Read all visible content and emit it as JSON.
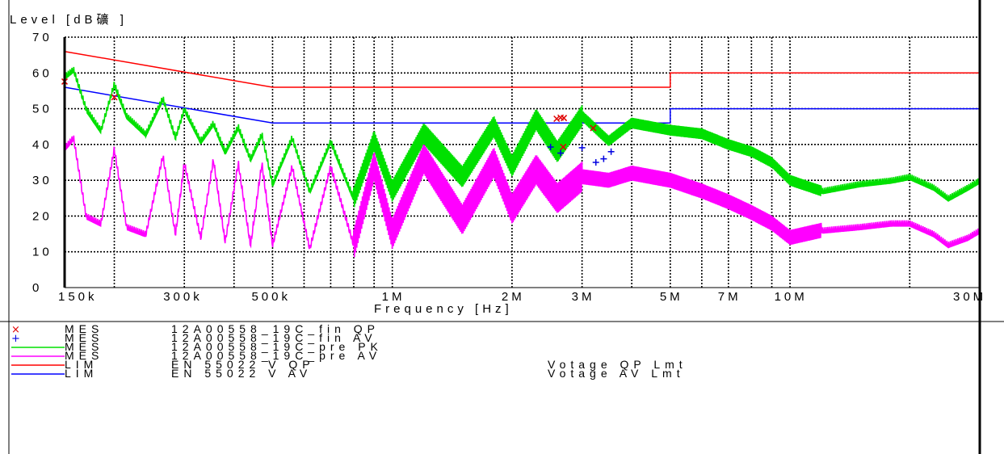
{
  "chart_data": {
    "type": "line",
    "ylabel": "Level [dB礦 ]",
    "xlabel": "Frequency [Hz]",
    "x_scale": "log",
    "xlim_hz": [
      150000,
      30000000
    ],
    "ylim": [
      0,
      70
    ],
    "y_ticks": [
      0,
      10,
      20,
      30,
      40,
      50,
      60,
      70
    ],
    "y_tick_labels": [
      "0",
      "10",
      "20",
      "30",
      "40",
      "50",
      "60",
      "70"
    ],
    "x_ticks_hz": [
      150000,
      300000,
      500000,
      1000000,
      2000000,
      3000000,
      5000000,
      7000000,
      10000000,
      30000000
    ],
    "x_tick_labels": [
      "150k",
      "300k",
      "500k",
      "1M",
      "2M",
      "3M",
      "5M",
      "7M",
      "10M",
      "30M"
    ],
    "grid": true,
    "colors": {
      "qp_marker": "#e00000",
      "av_marker": "#0000e0",
      "pre_pk": "#00e000",
      "pre_av": "#ff00ff",
      "qp_limit": "#ff0000",
      "av_limit": "#0000ff"
    },
    "series": [
      {
        "name": "12A00558_19C_fin QP",
        "kind": "markers",
        "x": [
          150000,
          200000,
          2590000,
          2650000,
          2700000,
          2690000,
          3200000
        ],
        "y": [
          57.6,
          53.2,
          47.2,
          47.5,
          47.4,
          39.3,
          44.6
        ]
      },
      {
        "name": "12A00558_19C_fin AV",
        "kind": "markers",
        "x": [
          2500000,
          2650000,
          3000000,
          3250000,
          3400000,
          3550000
        ],
        "y": [
          39.3,
          37.6,
          39.1,
          35.0,
          36.0,
          38.0
        ]
      },
      {
        "name": "12A00558_19C_pre PK",
        "kind": "line",
        "x": [
          150000,
          158000,
          170000,
          185000,
          200000,
          215000,
          240000,
          265000,
          285000,
          300000,
          330000,
          355000,
          380000,
          410000,
          440000,
          470000,
          500000,
          560000,
          620000,
          700000,
          800000,
          900000,
          1000000,
          1200000,
          1500000,
          1800000,
          2000000,
          2300000,
          2600000,
          3000000,
          3500000,
          4000000,
          5000000,
          6000000,
          7000000,
          8000000,
          9000000,
          10000000,
          12000000,
          15000000,
          18000000,
          20000000,
          23000000,
          25000000,
          28000000,
          30000000
        ],
        "y": [
          59,
          61,
          50,
          44,
          57,
          48,
          43,
          53,
          42,
          50,
          41,
          46,
          38,
          45,
          36,
          43,
          29,
          42,
          27,
          41,
          25,
          41,
          27,
          43,
          31,
          45,
          34,
          47,
          38,
          48,
          41,
          46,
          44,
          43,
          40,
          38,
          35,
          30,
          27,
          29,
          30,
          31,
          28,
          25,
          28,
          30
        ]
      },
      {
        "name": "12A00558_19C_pre AV",
        "kind": "line",
        "x": [
          150000,
          158000,
          170000,
          185000,
          200000,
          215000,
          240000,
          265000,
          285000,
          300000,
          330000,
          355000,
          380000,
          410000,
          440000,
          470000,
          500000,
          560000,
          620000,
          700000,
          800000,
          900000,
          1000000,
          1200000,
          1500000,
          1800000,
          2000000,
          2300000,
          2600000,
          3000000,
          3500000,
          4000000,
          5000000,
          6000000,
          7000000,
          8000000,
          9000000,
          10000000,
          12000000,
          15000000,
          18000000,
          20000000,
          23000000,
          25000000,
          28000000,
          30000000
        ],
        "y": [
          39,
          42,
          20,
          18,
          39,
          17,
          15,
          37,
          15,
          35,
          14,
          36,
          13,
          35,
          12,
          35,
          12,
          34,
          11,
          34,
          12,
          34,
          15,
          36,
          19,
          35,
          22,
          33,
          25,
          31,
          30,
          32,
          30,
          27,
          24,
          21,
          18,
          14,
          16,
          17,
          18,
          18,
          15,
          12,
          14,
          16
        ]
      },
      {
        "name": "EN 55022 V QP",
        "kind": "limit",
        "x": [
          150000,
          500000,
          5000000,
          5000000,
          30000000
        ],
        "y": [
          66,
          56,
          56,
          60,
          60
        ]
      },
      {
        "name": "EN 55022 V AV",
        "kind": "limit",
        "x": [
          150000,
          500000,
          5000000,
          5000000,
          30000000
        ],
        "y": [
          56,
          46,
          46,
          50,
          50
        ]
      }
    ]
  },
  "legend": [
    {
      "symbol": "×",
      "color": "#e00000",
      "prefix": "MES",
      "trace": "12A00558_19C_fin QP",
      "desc": ""
    },
    {
      "symbol": "+",
      "color": "#0000e0",
      "prefix": "MES",
      "trace": "12A00558_19C_fin AV",
      "desc": ""
    },
    {
      "symbol": "line",
      "color": "#00e000",
      "prefix": "MES",
      "trace": "12A00558_19C_pre PK",
      "desc": ""
    },
    {
      "symbol": "line",
      "color": "#ff00ff",
      "prefix": "MES",
      "trace": "12A00558_19C_pre AV",
      "desc": ""
    },
    {
      "symbol": "line",
      "color": "#ff0000",
      "prefix": "LIM",
      "trace": "EN 55022 V QP",
      "desc": "Votage QP Lmt"
    },
    {
      "symbol": "line",
      "color": "#0000ff",
      "prefix": "LIM",
      "trace": "EN 55022 V AV",
      "desc": "Votage AV Lmt"
    }
  ]
}
